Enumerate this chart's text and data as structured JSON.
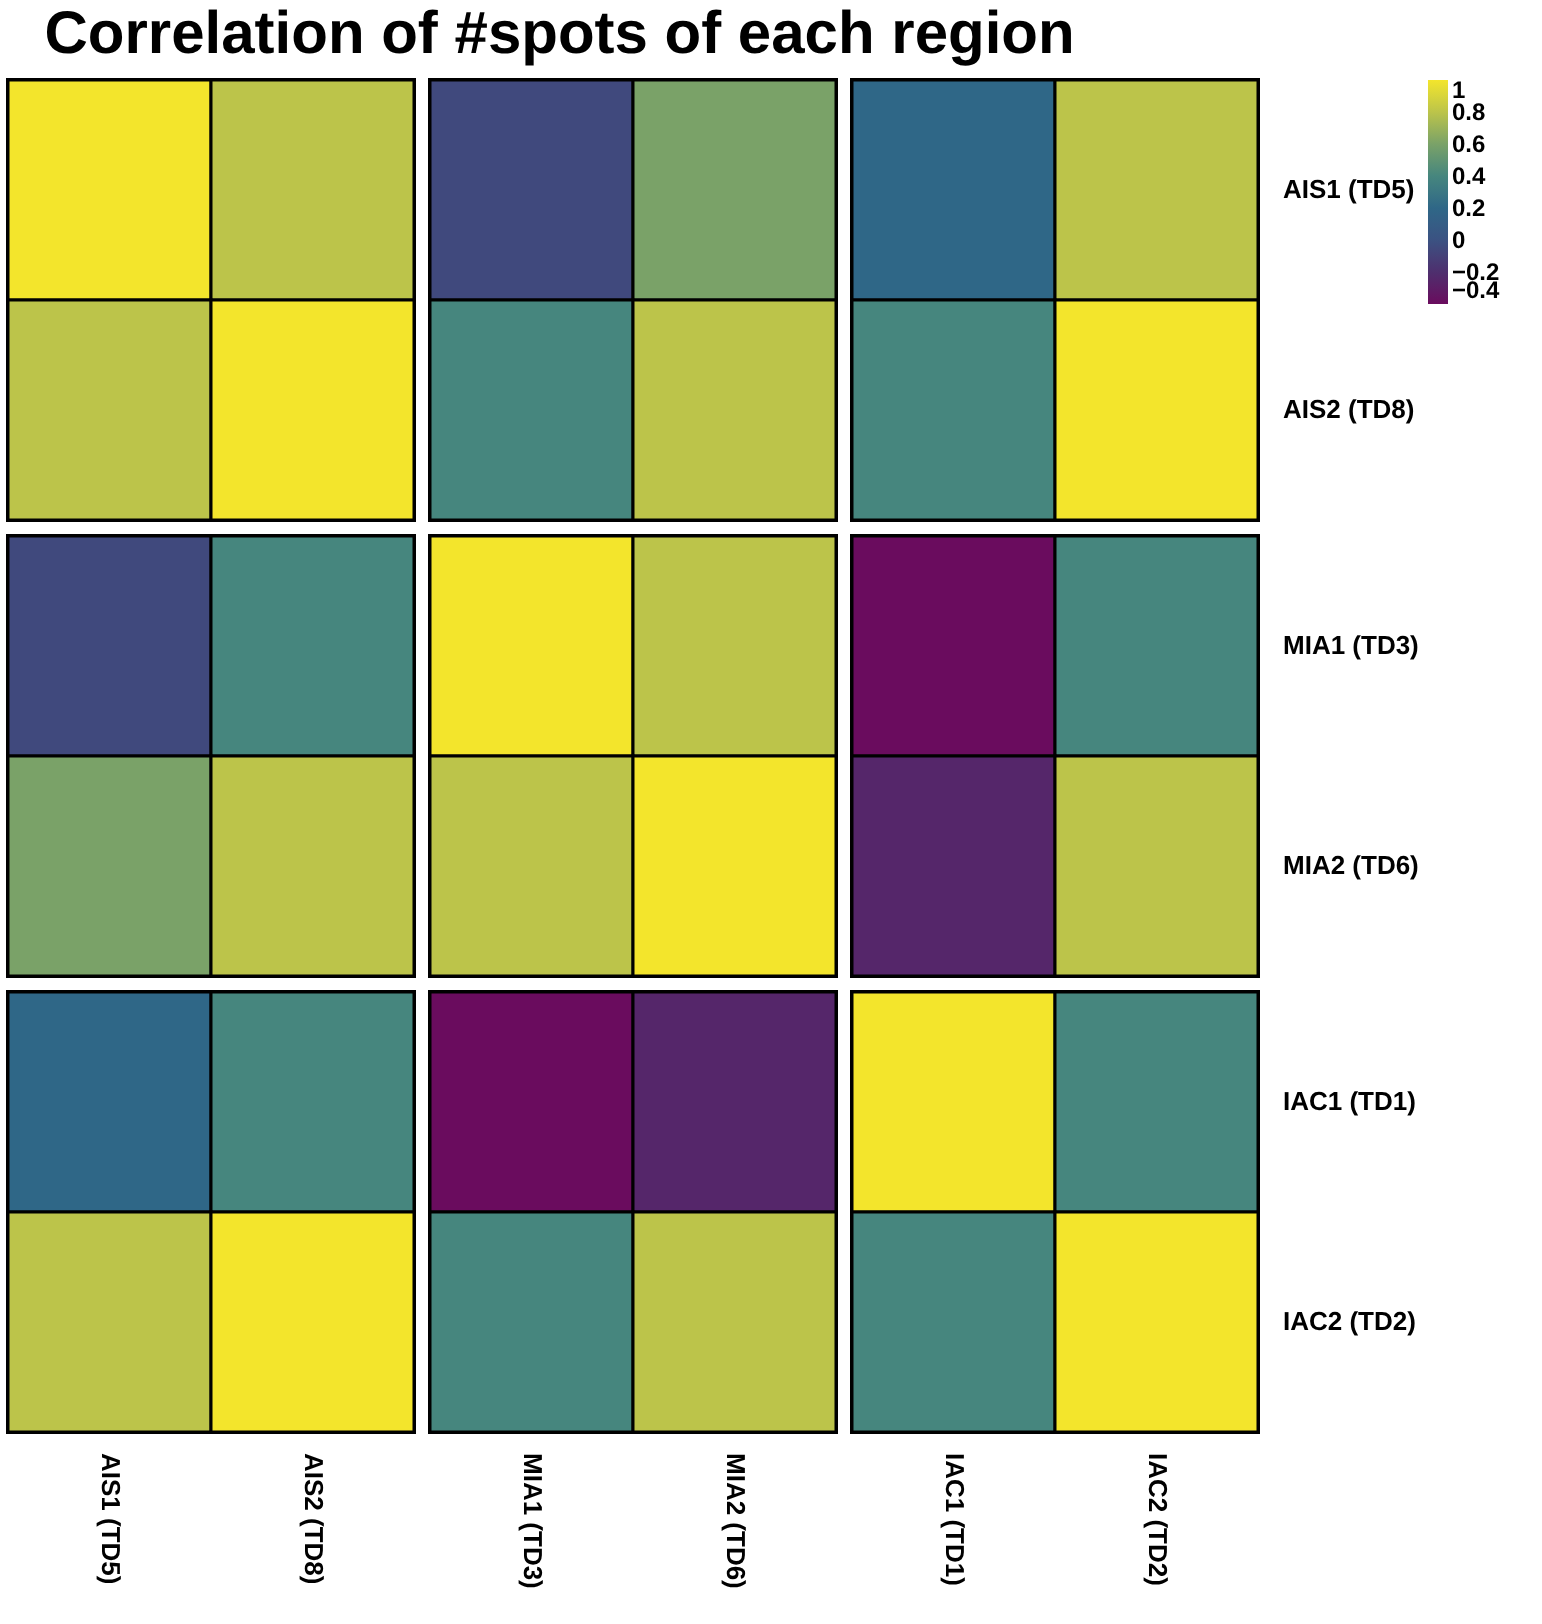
{
  "chart_data": {
    "type": "heatmap",
    "title": "Correlation of #spots of each region",
    "categories": [
      "AIS1 (TD5)",
      "AIS2 (TD8)",
      "MIA1 (TD3)",
      "MIA2 (TD6)",
      "IAC1 (TD1)",
      "IAC2 (TD2)"
    ],
    "y_categories": [
      "AIS1 (TD5)",
      "AIS2 (TD8)",
      "MIA1 (TD3)",
      "MIA2 (TD6)",
      "IAC1 (TD1)",
      "IAC2 (TD2)"
    ],
    "cells": [
      [
        1,
        0.8,
        -0.05,
        0.6,
        0.2,
        0.8
      ],
      [
        0.8,
        1,
        0.4,
        0.8,
        0.4,
        1
      ],
      [
        -0.05,
        0.4,
        1,
        0.8,
        -0.4,
        0.4
      ],
      [
        0.6,
        0.8,
        0.8,
        1,
        -0.25,
        0.8
      ],
      [
        0.2,
        0.4,
        -0.4,
        -0.25,
        1,
        0.4
      ],
      [
        0.8,
        1,
        0.4,
        0.8,
        0.4,
        1
      ]
    ],
    "clim": [
      -0.4,
      1
    ],
    "cticks": [
      1,
      0.8,
      0.6,
      0.4,
      0.2,
      0,
      -0.2,
      -0.4
    ]
  }
}
